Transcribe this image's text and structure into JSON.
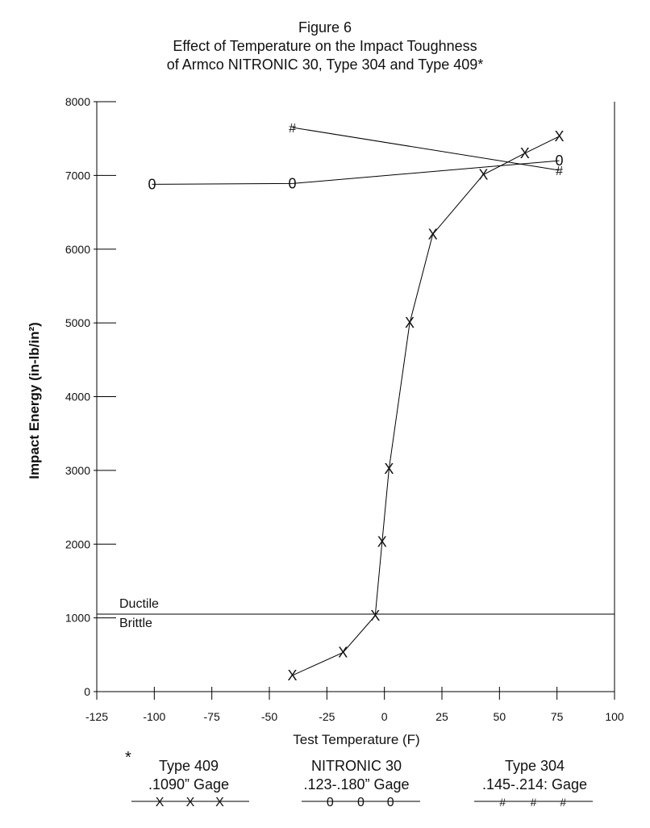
{
  "chart_data": {
    "type": "line",
    "title": [
      "Figure 6",
      "Effect of Temperature on the Impact Toughness",
      "of Armco NITRONIC 30, Type 304 and Type 409*"
    ],
    "xlabel": "Test Temperature (F)",
    "ylabel": "Impact Energy (in-lb/in²)",
    "xlim": [
      -125,
      100
    ],
    "ylim": [
      0,
      8000
    ],
    "x_ticks": [
      "-125",
      "-100",
      "-75",
      "-50",
      "-25",
      "0",
      "25",
      "50",
      "75",
      "100"
    ],
    "y_ticks": [
      "0",
      "1000",
      "2000",
      "3000",
      "4000",
      "5000",
      "6000",
      "7000",
      "8000"
    ],
    "grid": false,
    "reference_line": {
      "y": 1050,
      "label_above": "Ductile",
      "label_below": "Brittle"
    },
    "series": [
      {
        "name": "Type 409",
        "marker": "X",
        "color": "#000000",
        "x": [
          -40,
          -18,
          -4,
          -1,
          2,
          11,
          21,
          43,
          61,
          76
        ],
        "y": [
          220,
          530,
          1030,
          2030,
          3020,
          5000,
          6200,
          7010,
          7300,
          7530
        ]
      },
      {
        "name": "NITRONIC 30",
        "marker": "0",
        "color": "#000000",
        "x": [
          -101,
          -40,
          76
        ],
        "y": [
          6880,
          6890,
          7200
        ]
      },
      {
        "name": "Type 304",
        "marker": "#",
        "color": "#000000",
        "x": [
          -40,
          76
        ],
        "y": [
          7650,
          7070
        ]
      }
    ]
  },
  "legend": {
    "footnote_mark": "*",
    "entries": [
      {
        "name": "Type 409",
        "gage": ".1090” Gage",
        "symbol": "X"
      },
      {
        "name": "NITRONIC 30",
        "gage": ".123-.180” Gage",
        "symbol": "0"
      },
      {
        "name": "Type 304",
        "gage": ".145-.214: Gage",
        "symbol": "#"
      }
    ]
  }
}
